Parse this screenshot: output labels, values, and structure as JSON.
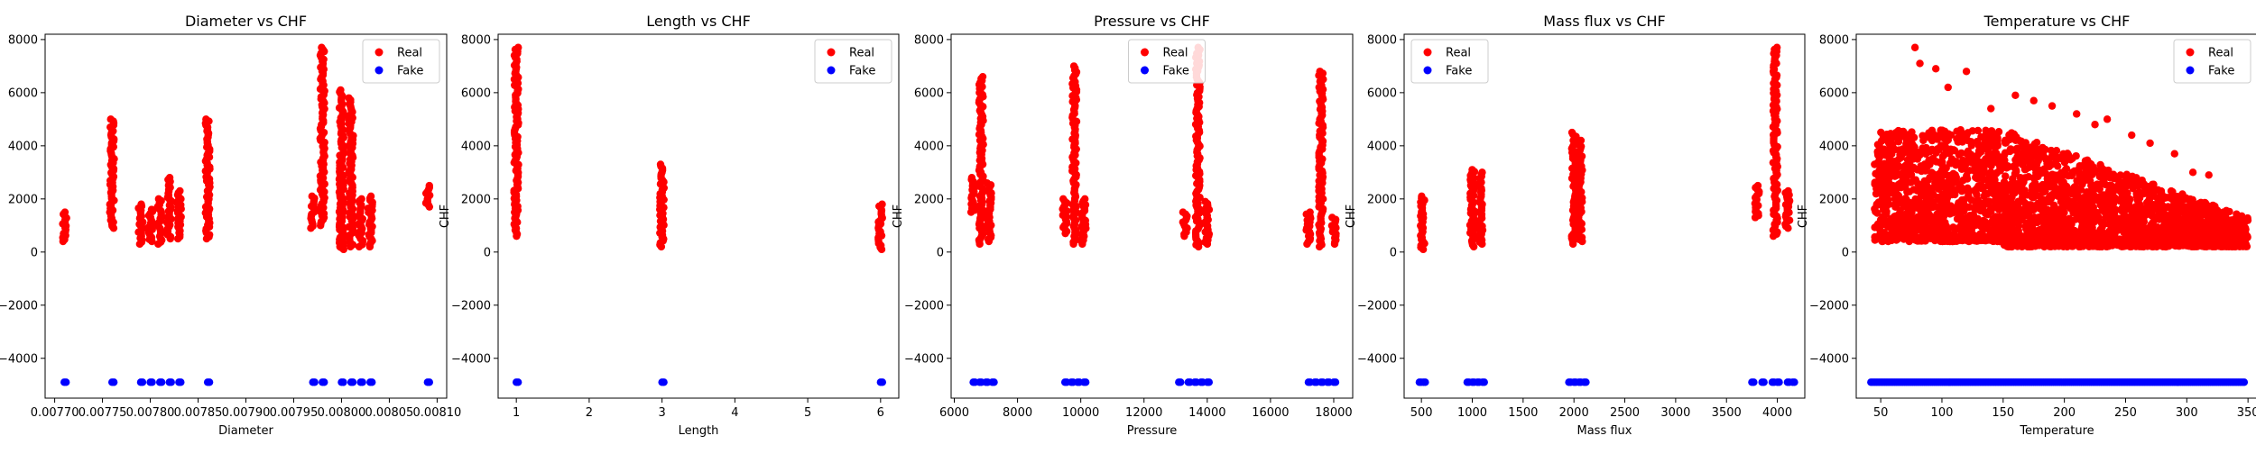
{
  "colors": {
    "real": "#ff0000",
    "fake": "#0000ff"
  },
  "chart_data": [
    {
      "type": "scatter",
      "title": "Diameter vs CHF",
      "xlabel": "Diameter",
      "ylabel": "CHF",
      "xlim": [
        0.00769,
        0.00811
      ],
      "ylim": [
        -5500,
        8200
      ],
      "xticks": [
        0.0077,
        0.00775,
        0.0078,
        0.00785,
        0.0079,
        0.00795,
        0.008,
        0.00805,
        0.0081
      ],
      "xtick_labels": [
        "0.00770",
        "0.00775",
        "0.00780",
        "0.00785",
        "0.00790",
        "0.00795",
        "0.00800",
        "0.00805",
        "0.00810"
      ],
      "yticks": [
        -4000,
        -2000,
        0,
        2000,
        4000,
        6000,
        8000
      ],
      "ytick_labels": [
        "−4000",
        "−2000",
        "0",
        "2000",
        "4000",
        "6000",
        "8000"
      ],
      "legend": "top-right",
      "series": [
        {
          "name": "Real",
          "bands": [
            {
              "x": 0.00771,
              "y": [
                400,
                1500
              ]
            },
            {
              "x": 0.00776,
              "y": [
                900,
                5000
              ]
            },
            {
              "x": 0.00779,
              "y": [
                300,
                1800
              ]
            },
            {
              "x": 0.0078,
              "y": [
                400,
                1600
              ]
            },
            {
              "x": 0.00781,
              "y": [
                300,
                2000
              ]
            },
            {
              "x": 0.00782,
              "y": [
                500,
                2800
              ]
            },
            {
              "x": 0.00783,
              "y": [
                500,
                2300
              ]
            },
            {
              "x": 0.00786,
              "y": [
                500,
                5000
              ]
            },
            {
              "x": 0.00797,
              "y": [
                900,
                2100
              ]
            },
            {
              "x": 0.00798,
              "y": [
                1000,
                7700
              ]
            },
            {
              "x": 0.008,
              "y": [
                100,
                3600
              ]
            },
            {
              "x": 0.008,
              "y": [
                200,
                6100
              ]
            },
            {
              "x": 0.00801,
              "y": [
                200,
                5800
              ]
            },
            {
              "x": 0.00802,
              "y": [
                200,
                2000
              ]
            },
            {
              "x": 0.00803,
              "y": [
                200,
                2100
              ]
            },
            {
              "x": 0.00809,
              "y": [
                1700,
                2500
              ]
            }
          ]
        },
        {
          "name": "Fake",
          "y": -4900,
          "x": [
            0.00771,
            0.00776,
            0.00779,
            0.0078,
            0.00781,
            0.00782,
            0.00783,
            0.00786,
            0.00797,
            0.00798,
            0.008,
            0.00801,
            0.00802,
            0.00803,
            0.00809
          ]
        }
      ]
    },
    {
      "type": "scatter",
      "title": "Length vs CHF",
      "xlabel": "Length",
      "ylabel": "CHF",
      "xlim": [
        0.75,
        6.25
      ],
      "ylim": [
        -5500,
        8200
      ],
      "xticks": [
        1,
        2,
        3,
        4,
        5,
        6
      ],
      "xtick_labels": [
        "1",
        "2",
        "3",
        "4",
        "5",
        "6"
      ],
      "yticks": [
        -4000,
        -2000,
        0,
        2000,
        4000,
        6000,
        8000
      ],
      "ytick_labels": [
        "−4000",
        "−2000",
        "0",
        "2000",
        "4000",
        "6000",
        "8000"
      ],
      "legend": "top-right",
      "series": [
        {
          "name": "Real",
          "bands": [
            {
              "x": 1,
              "y": [
                600,
                7700
              ]
            },
            {
              "x": 3,
              "y": [
                200,
                3300
              ]
            },
            {
              "x": 6,
              "y": [
                100,
                1800
              ]
            }
          ]
        },
        {
          "name": "Fake",
          "y": -4900,
          "x": [
            1,
            3,
            6
          ]
        }
      ]
    },
    {
      "type": "scatter",
      "title": "Pressure vs CHF",
      "xlabel": "Pressure",
      "ylabel": "CHF",
      "xlim": [
        5900,
        18600
      ],
      "ylim": [
        -5500,
        8200
      ],
      "xticks": [
        6000,
        8000,
        10000,
        12000,
        14000,
        16000,
        18000
      ],
      "xtick_labels": [
        "6000",
        "8000",
        "10000",
        "12000",
        "14000",
        "16000",
        "18000"
      ],
      "yticks": [
        -4000,
        -2000,
        0,
        2000,
        4000,
        6000,
        8000
      ],
      "ytick_labels": [
        "−4000",
        "−2000",
        "0",
        "2000",
        "4000",
        "6000",
        "8000"
      ],
      "legend": "top-center",
      "series": [
        {
          "name": "Real",
          "bands": [
            {
              "x": 6850,
              "y": [
                300,
                6600
              ]
            },
            {
              "x": 6600,
              "y": [
                1500,
                2800
              ]
            },
            {
              "x": 7100,
              "y": [
                400,
                2600
              ]
            },
            {
              "x": 9800,
              "y": [
                300,
                7000
              ]
            },
            {
              "x": 9500,
              "y": [
                700,
                2000
              ]
            },
            {
              "x": 10100,
              "y": [
                300,
                2000
              ]
            },
            {
              "x": 13700,
              "y": [
                200,
                7700
              ]
            },
            {
              "x": 13300,
              "y": [
                600,
                1500
              ]
            },
            {
              "x": 14000,
              "y": [
                300,
                1900
              ]
            },
            {
              "x": 17600,
              "y": [
                200,
                6800
              ]
            },
            {
              "x": 17200,
              "y": [
                300,
                1500
              ]
            },
            {
              "x": 18000,
              "y": [
                300,
                1300
              ]
            }
          ]
        },
        {
          "name": "Fake",
          "y": -4900,
          "x": [
            6600,
            6800,
            7000,
            7200,
            9500,
            9700,
            9900,
            10100,
            13100,
            13400,
            13600,
            13800,
            14000,
            17200,
            17400,
            17600,
            17800,
            18000
          ]
        }
      ]
    },
    {
      "type": "scatter",
      "title": "Mass flux vs CHF",
      "xlabel": "Mass flux",
      "ylabel": "CHF",
      "xlim": [
        330,
        4270
      ],
      "ylim": [
        -5500,
        8200
      ],
      "xticks": [
        500,
        1000,
        1500,
        2000,
        2500,
        3000,
        3500,
        4000
      ],
      "xtick_labels": [
        "500",
        "1000",
        "1500",
        "2000",
        "2500",
        "3000",
        "3500",
        "4000"
      ],
      "yticks": [
        -4000,
        -2000,
        0,
        2000,
        4000,
        6000,
        8000
      ],
      "ytick_labels": [
        "−4000",
        "−2000",
        "0",
        "2000",
        "4000",
        "6000",
        "8000"
      ],
      "legend": "top-left",
      "series": [
        {
          "name": "Real",
          "bands": [
            {
              "x": 510,
              "y": [
                100,
                2100
              ]
            },
            {
              "x": 1000,
              "y": [
                200,
                3100
              ]
            },
            {
              "x": 1080,
              "y": [
                300,
                3000
              ]
            },
            {
              "x": 2000,
              "y": [
                300,
                4500
              ]
            },
            {
              "x": 2060,
              "y": [
                400,
                4200
              ]
            },
            {
              "x": 3980,
              "y": [
                600,
                7700
              ]
            },
            {
              "x": 3800,
              "y": [
                1300,
                2500
              ]
            },
            {
              "x": 4100,
              "y": [
                900,
                2300
              ]
            }
          ]
        },
        {
          "name": "Fake",
          "y": -4900,
          "x": [
            480,
            520,
            950,
            1000,
            1050,
            1100,
            1950,
            2000,
            2050,
            2100,
            3750,
            3850,
            3950,
            4000,
            4100,
            4150
          ]
        }
      ]
    },
    {
      "type": "scatter",
      "title": "Temperature vs CHF",
      "xlabel": "Temperature",
      "ylabel": "CHF",
      "xlim": [
        30,
        358
      ],
      "ylim": [
        -5500,
        8200
      ],
      "xticks": [
        50,
        100,
        150,
        200,
        250,
        300,
        350
      ],
      "xtick_labels": [
        "50",
        "100",
        "150",
        "200",
        "250",
        "300",
        "350"
      ],
      "yticks": [
        -4000,
        -2000,
        0,
        2000,
        4000,
        6000,
        8000
      ],
      "ytick_labels": [
        "−4000",
        "−2000",
        "0",
        "2000",
        "4000",
        "6000",
        "8000"
      ],
      "legend": "top-right",
      "series": [
        {
          "name": "Real",
          "points": [
            [
              78,
              7700
            ],
            [
              82,
              7100
            ],
            [
              95,
              6900
            ],
            [
              105,
              6200
            ],
            [
              120,
              6800
            ],
            [
              140,
              5400
            ],
            [
              160,
              5900
            ],
            [
              175,
              5700
            ],
            [
              190,
              5500
            ],
            [
              210,
              5200
            ],
            [
              225,
              4800
            ],
            [
              235,
              5000
            ],
            [
              255,
              4400
            ],
            [
              270,
              4100
            ],
            [
              290,
              3700
            ],
            [
              305,
              3000
            ],
            [
              318,
              2900
            ],
            [
              55,
              4300
            ],
            [
              65,
              4500
            ],
            [
              70,
              3800
            ],
            [
              45,
              3300
            ],
            [
              50,
              3000
            ],
            [
              60,
              3100
            ]
          ],
          "density_bands": [
            {
              "x0": 45,
              "x1": 150,
              "top0": 4600,
              "top1": 4600,
              "bottom": 400
            },
            {
              "x0": 150,
              "x1": 350,
              "top0": 4600,
              "top1": 1300,
              "bottom": 200
            }
          ]
        },
        {
          "name": "Fake",
          "y": -4900,
          "x_range": [
            42,
            347
          ]
        }
      ]
    }
  ]
}
